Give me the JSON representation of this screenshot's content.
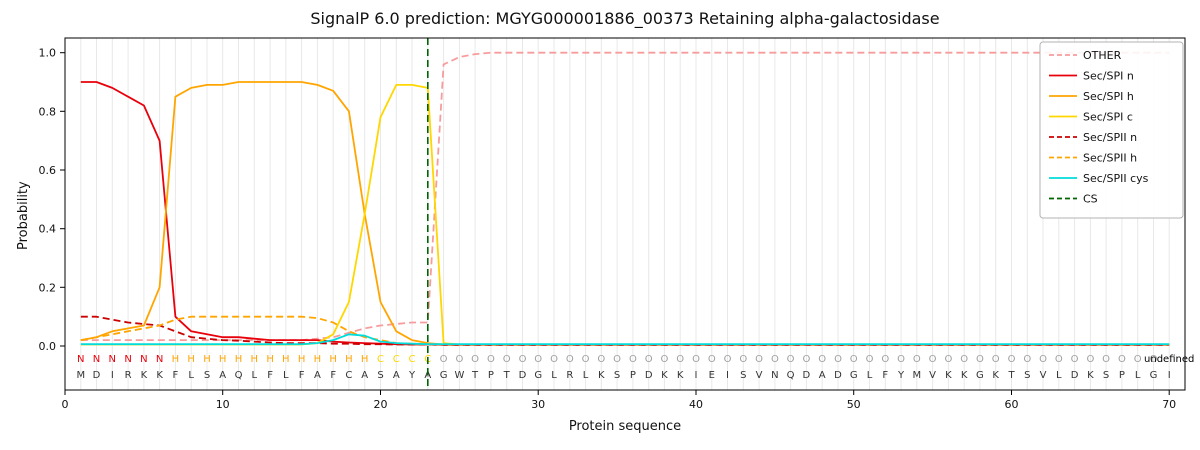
{
  "title": "SignalP 6.0 prediction: MGYG000001886_00373 Retaining alpha-galactosidase",
  "chart_data": {
    "type": "line",
    "xlabel": "Protein sequence",
    "ylabel": "Probability",
    "xlim": [
      0,
      71
    ],
    "ylim": [
      -0.15,
      1.05
    ],
    "xticks": [
      0,
      10,
      20,
      30,
      40,
      50,
      60,
      70
    ],
    "yticks": [
      0.0,
      0.2,
      0.4,
      0.6,
      0.8,
      1.0
    ],
    "grid": "vertical-per-residue",
    "legend_position": "upper right",
    "cs_position": 23,
    "sequence": "MDIRKKFLSAQLFLFAFCASAYAGWTPTDGLRLKSPDKKIEISVNQDADGLFYMVKKGKTSVLDKSPLGI",
    "regions": "NNNNNNHHHHHHHHHHHHHCCCCOOOOOOOOOOOOOOOOOOOOOOOOOOOOOOOOOOOOOOOOOOOOOO",
    "region_colors": {
      "N": "#e8000b",
      "H": "#ffa500",
      "C": "#ffd700",
      "O": "#a0a0a0"
    },
    "sequence_color": "#333333",
    "series": [
      {
        "name": "OTHER",
        "color": "#f79c9c",
        "dash": "dashed",
        "values": [
          0.02,
          0.02,
          0.02,
          0.02,
          0.02,
          0.02,
          0.02,
          0.02,
          0.02,
          0.02,
          0.02,
          0.02,
          0.02,
          0.02,
          0.02,
          0.025,
          0.03,
          0.045,
          0.06,
          0.07,
          0.075,
          0.08,
          0.08,
          0.96,
          0.985,
          0.995,
          1.0,
          1.0,
          1.0,
          1.0,
          1.0,
          1.0,
          1.0,
          1.0,
          1.0,
          1.0,
          1.0,
          1.0,
          1.0,
          1.0,
          1.0,
          1.0,
          1.0,
          1.0,
          1.0,
          1.0,
          1.0,
          1.0,
          1.0,
          1.0,
          1.0,
          1.0,
          1.0,
          1.0,
          1.0,
          1.0,
          1.0,
          1.0,
          1.0,
          1.0,
          1.0,
          1.0,
          1.0,
          1.0,
          1.0,
          1.0,
          1.0,
          1.0,
          1.0,
          1.0
        ]
      },
      {
        "name": "Sec/SPI n",
        "color": "#e8000b",
        "dash": "solid",
        "values": [
          0.9,
          0.9,
          0.88,
          0.85,
          0.82,
          0.7,
          0.1,
          0.05,
          0.04,
          0.03,
          0.03,
          0.025,
          0.02,
          0.02,
          0.02,
          0.02,
          0.015,
          0.012,
          0.01,
          0.008,
          0.006,
          0.005,
          0.005,
          0.004,
          0.004,
          0.004,
          0.004,
          0.004,
          0.004,
          0.004,
          0.004,
          0.004,
          0.004,
          0.004,
          0.004,
          0.004,
          0.004,
          0.004,
          0.004,
          0.004,
          0.004,
          0.004,
          0.004,
          0.004,
          0.004,
          0.004,
          0.004,
          0.004,
          0.004,
          0.004,
          0.004,
          0.004,
          0.004,
          0.004,
          0.004,
          0.004,
          0.004,
          0.004,
          0.004,
          0.004,
          0.004,
          0.004,
          0.004,
          0.004,
          0.004,
          0.004,
          0.004,
          0.004,
          0.004,
          0.004
        ]
      },
      {
        "name": "Sec/SPI h",
        "color": "#ffa500",
        "dash": "solid",
        "values": [
          0.02,
          0.03,
          0.05,
          0.06,
          0.07,
          0.2,
          0.85,
          0.88,
          0.89,
          0.89,
          0.9,
          0.9,
          0.9,
          0.9,
          0.9,
          0.89,
          0.87,
          0.8,
          0.45,
          0.15,
          0.05,
          0.02,
          0.01,
          0.005,
          0.005,
          0.005,
          0.005,
          0.005,
          0.005,
          0.005,
          0.005,
          0.005,
          0.005,
          0.005,
          0.005,
          0.005,
          0.005,
          0.005,
          0.005,
          0.005,
          0.005,
          0.005,
          0.005,
          0.005,
          0.005,
          0.005,
          0.005,
          0.005,
          0.005,
          0.005,
          0.005,
          0.005,
          0.005,
          0.005,
          0.005,
          0.005,
          0.005,
          0.005,
          0.005,
          0.005,
          0.005,
          0.005,
          0.005,
          0.005,
          0.005,
          0.005,
          0.005,
          0.005,
          0.005,
          0.005
        ]
      },
      {
        "name": "Sec/SPI c",
        "color": "#ffd700",
        "dash": "solid",
        "values": [
          0.005,
          0.005,
          0.005,
          0.005,
          0.005,
          0.005,
          0.005,
          0.005,
          0.005,
          0.005,
          0.005,
          0.005,
          0.005,
          0.005,
          0.005,
          0.01,
          0.04,
          0.15,
          0.45,
          0.78,
          0.89,
          0.89,
          0.88,
          0.01,
          0.005,
          0.005,
          0.005,
          0.005,
          0.005,
          0.005,
          0.005,
          0.005,
          0.005,
          0.005,
          0.005,
          0.005,
          0.005,
          0.005,
          0.005,
          0.005,
          0.005,
          0.005,
          0.005,
          0.005,
          0.005,
          0.005,
          0.005,
          0.005,
          0.005,
          0.005,
          0.005,
          0.005,
          0.005,
          0.005,
          0.005,
          0.005,
          0.005,
          0.005,
          0.005,
          0.005,
          0.005,
          0.005,
          0.005,
          0.005,
          0.005,
          0.005,
          0.005,
          0.005,
          0.005,
          0.005
        ]
      },
      {
        "name": "Sec/SPII n",
        "color": "#cc0000",
        "dash": "dashed",
        "values": [
          0.1,
          0.1,
          0.09,
          0.08,
          0.075,
          0.07,
          0.05,
          0.03,
          0.025,
          0.02,
          0.018,
          0.015,
          0.012,
          0.01,
          0.01,
          0.01,
          0.008,
          0.008,
          0.006,
          0.006,
          0.005,
          0.005,
          0.005,
          0.004,
          0.004,
          0.004,
          0.004,
          0.004,
          0.004,
          0.004,
          0.004,
          0.004,
          0.004,
          0.004,
          0.004,
          0.004,
          0.004,
          0.004,
          0.004,
          0.004,
          0.004,
          0.004,
          0.004,
          0.004,
          0.004,
          0.004,
          0.004,
          0.004,
          0.004,
          0.004,
          0.004,
          0.004,
          0.004,
          0.004,
          0.004,
          0.004,
          0.004,
          0.004,
          0.004,
          0.004,
          0.004,
          0.004,
          0.004,
          0.004,
          0.004,
          0.004,
          0.004,
          0.004,
          0.004,
          0.004
        ]
      },
      {
        "name": "Sec/SPII h",
        "color": "#ffa500",
        "dash": "dashed",
        "values": [
          0.02,
          0.03,
          0.04,
          0.05,
          0.06,
          0.07,
          0.09,
          0.1,
          0.1,
          0.1,
          0.1,
          0.1,
          0.1,
          0.1,
          0.1,
          0.095,
          0.08,
          0.05,
          0.03,
          0.02,
          0.01,
          0.008,
          0.006,
          0.005,
          0.005,
          0.005,
          0.005,
          0.005,
          0.005,
          0.005,
          0.005,
          0.005,
          0.005,
          0.005,
          0.005,
          0.005,
          0.005,
          0.005,
          0.005,
          0.005,
          0.005,
          0.005,
          0.005,
          0.005,
          0.005,
          0.005,
          0.005,
          0.005,
          0.005,
          0.005,
          0.005,
          0.005,
          0.005,
          0.005,
          0.005,
          0.005,
          0.005,
          0.005,
          0.005,
          0.005,
          0.005,
          0.005,
          0.005,
          0.005,
          0.005,
          0.005,
          0.005,
          0.005,
          0.005,
          0.005
        ]
      },
      {
        "name": "Sec/SPII cys",
        "color": "#00dcdc",
        "dash": "solid",
        "values": [
          0.006,
          0.006,
          0.006,
          0.006,
          0.006,
          0.006,
          0.006,
          0.006,
          0.006,
          0.006,
          0.006,
          0.006,
          0.006,
          0.006,
          0.006,
          0.01,
          0.02,
          0.04,
          0.035,
          0.015,
          0.01,
          0.008,
          0.006,
          0.006,
          0.006,
          0.006,
          0.006,
          0.006,
          0.006,
          0.006,
          0.006,
          0.006,
          0.006,
          0.006,
          0.006,
          0.006,
          0.006,
          0.006,
          0.006,
          0.006,
          0.006,
          0.006,
          0.006,
          0.006,
          0.006,
          0.006,
          0.006,
          0.006,
          0.006,
          0.006,
          0.006,
          0.006,
          0.006,
          0.006,
          0.006,
          0.006,
          0.006,
          0.006,
          0.006,
          0.006,
          0.006,
          0.006,
          0.006,
          0.006,
          0.006,
          0.006,
          0.006,
          0.006,
          0.006,
          0.006
        ]
      }
    ],
    "cs": {
      "name": "CS",
      "color": "#006400",
      "dash": "dashed"
    }
  }
}
